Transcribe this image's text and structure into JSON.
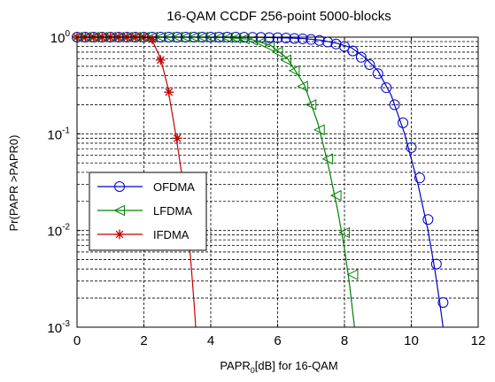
{
  "chart_data": {
    "type": "line",
    "title": "16-QAM CCDF 256-point 5000-blocks",
    "xlabel_main": "PAPR",
    "xlabel_sub": "0",
    "xlabel_rest": "[dB] for 16-QAM",
    "ylabel": "Pr(PAPR >PAPR0)",
    "xlim": [
      0,
      12
    ],
    "ylim": [
      0.001,
      1
    ],
    "y_scale": "log",
    "grid": true,
    "legend_position": "center-left",
    "x_ticks": [
      "0",
      "2",
      "4",
      "6",
      "8",
      "10",
      "12"
    ],
    "y_ticks": [
      {
        "base": "10",
        "exp": "0"
      },
      {
        "base": "10",
        "exp": "-1"
      },
      {
        "base": "10",
        "exp": "-2"
      },
      {
        "base": "10",
        "exp": "-3"
      }
    ],
    "series": [
      {
        "name": "OFDMA",
        "color": "#0000c8",
        "marker": "circle",
        "points": [
          [
            0.0,
            1.0
          ],
          [
            4.5,
            1.0
          ],
          [
            5.5,
            0.995
          ],
          [
            6.2,
            0.985
          ],
          [
            6.8,
            0.965
          ],
          [
            7.3,
            0.93
          ],
          [
            7.8,
            0.86
          ],
          [
            8.2,
            0.78
          ],
          [
            8.6,
            0.62
          ],
          [
            9.0,
            0.45
          ],
          [
            9.4,
            0.25
          ],
          [
            9.8,
            0.1
          ],
          [
            10.2,
            0.03
          ],
          [
            10.5,
            0.01
          ],
          [
            10.7,
            0.004
          ],
          [
            10.85,
            0.0018
          ],
          [
            10.95,
            0.001
          ]
        ],
        "markers": [
          [
            0.0,
            1.0
          ],
          [
            0.25,
            1.0
          ],
          [
            0.5,
            1.0
          ],
          [
            0.75,
            1.0
          ],
          [
            1.0,
            1.0
          ],
          [
            1.25,
            1.0
          ],
          [
            1.5,
            1.0
          ],
          [
            1.75,
            1.0
          ],
          [
            2.0,
            1.0
          ],
          [
            2.25,
            1.0
          ],
          [
            2.5,
            1.0
          ],
          [
            2.75,
            1.0
          ],
          [
            3.0,
            1.0
          ],
          [
            3.25,
            1.0
          ],
          [
            3.5,
            1.0
          ],
          [
            3.75,
            1.0
          ],
          [
            4.0,
            1.0
          ],
          [
            4.25,
            1.0
          ],
          [
            4.5,
            1.0
          ],
          [
            4.75,
            1.0
          ],
          [
            5.0,
            0.998
          ],
          [
            5.25,
            0.996
          ],
          [
            5.5,
            0.994
          ],
          [
            5.75,
            0.99
          ],
          [
            6.0,
            0.986
          ],
          [
            6.25,
            0.98
          ],
          [
            6.5,
            0.97
          ],
          [
            6.75,
            0.96
          ],
          [
            7.0,
            0.945
          ],
          [
            7.25,
            0.925
          ],
          [
            7.5,
            0.89
          ],
          [
            7.75,
            0.85
          ],
          [
            8.0,
            0.8
          ],
          [
            8.25,
            0.72
          ],
          [
            8.5,
            0.62
          ],
          [
            8.75,
            0.52
          ],
          [
            9.0,
            0.42
          ],
          [
            9.25,
            0.3
          ],
          [
            9.5,
            0.2
          ],
          [
            9.75,
            0.13
          ],
          [
            10.0,
            0.072
          ],
          [
            10.25,
            0.035
          ],
          [
            10.5,
            0.013
          ],
          [
            10.75,
            0.0045
          ],
          [
            10.95,
            0.0018
          ]
        ]
      },
      {
        "name": "LFDMA",
        "color": "#008000",
        "marker": "triangle-left",
        "points": [
          [
            0.0,
            1.0
          ],
          [
            3.5,
            1.0
          ],
          [
            4.5,
            0.99
          ],
          [
            5.2,
            0.95
          ],
          [
            5.8,
            0.82
          ],
          [
            6.3,
            0.6
          ],
          [
            6.8,
            0.32
          ],
          [
            7.2,
            0.13
          ],
          [
            7.5,
            0.05
          ],
          [
            7.8,
            0.016
          ],
          [
            8.0,
            0.0065
          ],
          [
            8.15,
            0.0028
          ],
          [
            8.3,
            0.001
          ]
        ],
        "markers": [
          [
            0.0,
            1.0
          ],
          [
            0.25,
            1.0
          ],
          [
            0.5,
            1.0
          ],
          [
            0.75,
            1.0
          ],
          [
            1.0,
            1.0
          ],
          [
            1.25,
            1.0
          ],
          [
            1.5,
            1.0
          ],
          [
            1.75,
            1.0
          ],
          [
            2.0,
            1.0
          ],
          [
            2.25,
            1.0
          ],
          [
            2.5,
            1.0
          ],
          [
            2.75,
            1.0
          ],
          [
            3.0,
            1.0
          ],
          [
            3.25,
            1.0
          ],
          [
            3.5,
            1.0
          ],
          [
            3.75,
            0.998
          ],
          [
            4.0,
            0.995
          ],
          [
            4.25,
            0.99
          ],
          [
            4.5,
            0.985
          ],
          [
            4.75,
            0.975
          ],
          [
            5.0,
            0.96
          ],
          [
            5.25,
            0.93
          ],
          [
            5.5,
            0.88
          ],
          [
            5.75,
            0.8
          ],
          [
            6.0,
            0.7
          ],
          [
            6.25,
            0.58
          ],
          [
            6.5,
            0.45
          ],
          [
            6.75,
            0.31
          ],
          [
            7.0,
            0.2
          ],
          [
            7.25,
            0.11
          ],
          [
            7.5,
            0.055
          ],
          [
            7.75,
            0.023
          ],
          [
            8.0,
            0.0095
          ],
          [
            8.25,
            0.0035
          ]
        ]
      },
      {
        "name": "IFDMA",
        "color": "#c80000",
        "marker": "star",
        "points": [
          [
            0.0,
            1.0
          ],
          [
            2.0,
            1.0
          ],
          [
            2.15,
            0.98
          ],
          [
            2.3,
            0.85
          ],
          [
            2.5,
            0.6
          ],
          [
            2.7,
            0.32
          ],
          [
            2.95,
            0.1
          ],
          [
            3.15,
            0.035
          ],
          [
            3.3,
            0.012
          ],
          [
            3.4,
            0.005
          ],
          [
            3.5,
            0.0018
          ],
          [
            3.55,
            0.001
          ]
        ],
        "markers": [
          [
            0.0,
            1.0
          ],
          [
            0.25,
            1.0
          ],
          [
            0.5,
            1.0
          ],
          [
            0.75,
            1.0
          ],
          [
            1.0,
            1.0
          ],
          [
            1.25,
            1.0
          ],
          [
            1.5,
            1.0
          ],
          [
            1.75,
            1.0
          ],
          [
            2.0,
            1.0
          ],
          [
            2.25,
            0.95
          ],
          [
            2.5,
            0.58
          ],
          [
            2.75,
            0.27
          ],
          [
            3.0,
            0.09
          ]
        ]
      }
    ]
  }
}
